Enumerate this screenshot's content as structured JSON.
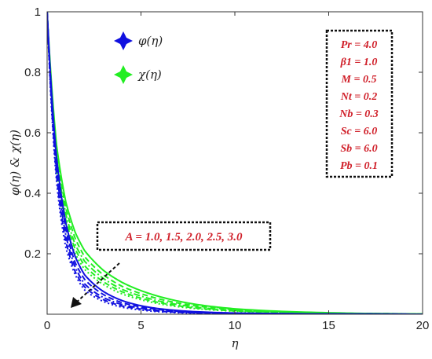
{
  "chart_data": {
    "type": "line",
    "title": "",
    "xlabel": "η",
    "ylabel": "φ(η) & χ(η)",
    "xlim": [
      0,
      20
    ],
    "ylim": [
      0,
      1
    ],
    "x_ticks": [
      "0",
      "5",
      "10",
      "15",
      "20"
    ],
    "y_ticks": [
      "0.2",
      "0.4",
      "0.6",
      "0.8",
      "1"
    ],
    "grid": false,
    "legend": {
      "position": "top-left",
      "entries": [
        {
          "label": "φ(η)",
          "color": "#1010e0",
          "marker": "star4"
        },
        {
          "label": "χ(η)",
          "color": "#22ee22",
          "marker": "star4"
        }
      ]
    },
    "parameters": [
      "Pr = 4.0",
      "β1 = 1.0",
      "M = 0.5",
      "Nt = 0.2",
      "Nb = 0.3",
      "Sc = 6.0",
      "Sb = 6.0",
      "Pb = 0.1"
    ],
    "annotation": "A = 1.0, 1.5, 2.0, 2.5, 3.0",
    "A_values": [
      1.0,
      1.5,
      2.0,
      2.5,
      3.0
    ],
    "line_styles": [
      "solid",
      "dashed",
      "dashdot",
      "dashed",
      "dotted"
    ],
    "series": [
      {
        "group": "φ(η)",
        "color": "#1010e0",
        "A": 1.0,
        "x": [
          0,
          0.5,
          1,
          1.5,
          2,
          3,
          4,
          5,
          6,
          8,
          10,
          15,
          20
        ],
        "y": [
          1,
          0.52,
          0.3,
          0.19,
          0.13,
          0.075,
          0.045,
          0.028,
          0.018,
          0.008,
          0.004,
          0.001,
          0
        ]
      },
      {
        "group": "φ(η)",
        "color": "#1010e0",
        "A": 1.5,
        "x": [
          0,
          0.5,
          1,
          1.5,
          2,
          3,
          4,
          5,
          6,
          8,
          10,
          15,
          20
        ],
        "y": [
          1,
          0.5,
          0.28,
          0.17,
          0.115,
          0.065,
          0.038,
          0.024,
          0.015,
          0.006,
          0.003,
          0.001,
          0
        ]
      },
      {
        "group": "φ(η)",
        "color": "#1010e0",
        "A": 2.0,
        "x": [
          0,
          0.5,
          1,
          1.5,
          2,
          3,
          4,
          5,
          6,
          8,
          10,
          15,
          20
        ],
        "y": [
          1,
          0.48,
          0.26,
          0.155,
          0.1,
          0.055,
          0.032,
          0.02,
          0.012,
          0.005,
          0.002,
          0.001,
          0
        ]
      },
      {
        "group": "φ(η)",
        "color": "#1010e0",
        "A": 2.5,
        "x": [
          0,
          0.5,
          1,
          1.5,
          2,
          3,
          4,
          5,
          6,
          8,
          10,
          15,
          20
        ],
        "y": [
          1,
          0.46,
          0.24,
          0.14,
          0.09,
          0.048,
          0.027,
          0.017,
          0.01,
          0.004,
          0.002,
          0.0005,
          0
        ]
      },
      {
        "group": "φ(η)",
        "color": "#1010e0",
        "A": 3.0,
        "x": [
          0,
          0.5,
          1,
          1.5,
          2,
          3,
          4,
          5,
          6,
          8,
          10,
          15,
          20
        ],
        "y": [
          1,
          0.44,
          0.22,
          0.13,
          0.08,
          0.042,
          0.023,
          0.014,
          0.008,
          0.003,
          0.001,
          0.0005,
          0
        ]
      },
      {
        "group": "χ(η)",
        "color": "#22ee22",
        "A": 1.0,
        "x": [
          0,
          0.5,
          1,
          1.5,
          2,
          3,
          4,
          5,
          6,
          8,
          10,
          15,
          20
        ],
        "y": [
          1,
          0.56,
          0.37,
          0.27,
          0.21,
          0.145,
          0.105,
          0.078,
          0.058,
          0.032,
          0.018,
          0.005,
          0.001
        ]
      },
      {
        "group": "χ(η)",
        "color": "#22ee22",
        "A": 1.5,
        "x": [
          0,
          0.5,
          1,
          1.5,
          2,
          3,
          4,
          5,
          6,
          8,
          10,
          15,
          20
        ],
        "y": [
          1,
          0.54,
          0.35,
          0.25,
          0.19,
          0.13,
          0.092,
          0.068,
          0.05,
          0.027,
          0.015,
          0.004,
          0.001
        ]
      },
      {
        "group": "χ(η)",
        "color": "#22ee22",
        "A": 2.0,
        "x": [
          0,
          0.5,
          1,
          1.5,
          2,
          3,
          4,
          5,
          6,
          8,
          10,
          15,
          20
        ],
        "y": [
          1,
          0.52,
          0.33,
          0.23,
          0.175,
          0.118,
          0.082,
          0.06,
          0.043,
          0.023,
          0.013,
          0.003,
          0.001
        ]
      },
      {
        "group": "χ(η)",
        "color": "#22ee22",
        "A": 2.5,
        "x": [
          0,
          0.5,
          1,
          1.5,
          2,
          3,
          4,
          5,
          6,
          8,
          10,
          15,
          20
        ],
        "y": [
          1,
          0.5,
          0.31,
          0.215,
          0.16,
          0.107,
          0.074,
          0.053,
          0.038,
          0.02,
          0.011,
          0.003,
          0.001
        ]
      },
      {
        "group": "χ(η)",
        "color": "#22ee22",
        "A": 3.0,
        "x": [
          0,
          0.5,
          1,
          1.5,
          2,
          3,
          4,
          5,
          6,
          8,
          10,
          15,
          20
        ],
        "y": [
          1,
          0.48,
          0.29,
          0.2,
          0.148,
          0.098,
          0.067,
          0.048,
          0.034,
          0.018,
          0.01,
          0.002,
          0
        ]
      }
    ]
  }
}
